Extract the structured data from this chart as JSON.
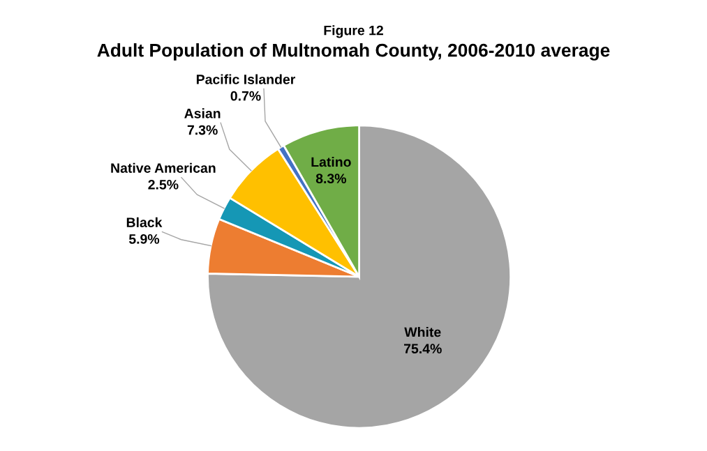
{
  "chart_data": {
    "type": "pie",
    "subtitle": "Figure 12",
    "title": "Adult Population of Multnomah County, 2006-2010 average",
    "categories": [
      "White",
      "Black",
      "Native American",
      "Asian",
      "Pacific Islander",
      "Latino"
    ],
    "values": [
      75.4,
      5.9,
      2.5,
      7.3,
      0.7,
      8.3
    ],
    "colors": [
      "#a5a5a5",
      "#ed7d31",
      "#1597b5",
      "#ffc000",
      "#4472c4",
      "#70ad47"
    ],
    "value_labels": [
      "75.4%",
      "5.9%",
      "2.5%",
      "7.3%",
      "0.7%",
      "8.3%"
    ],
    "legend": false
  }
}
